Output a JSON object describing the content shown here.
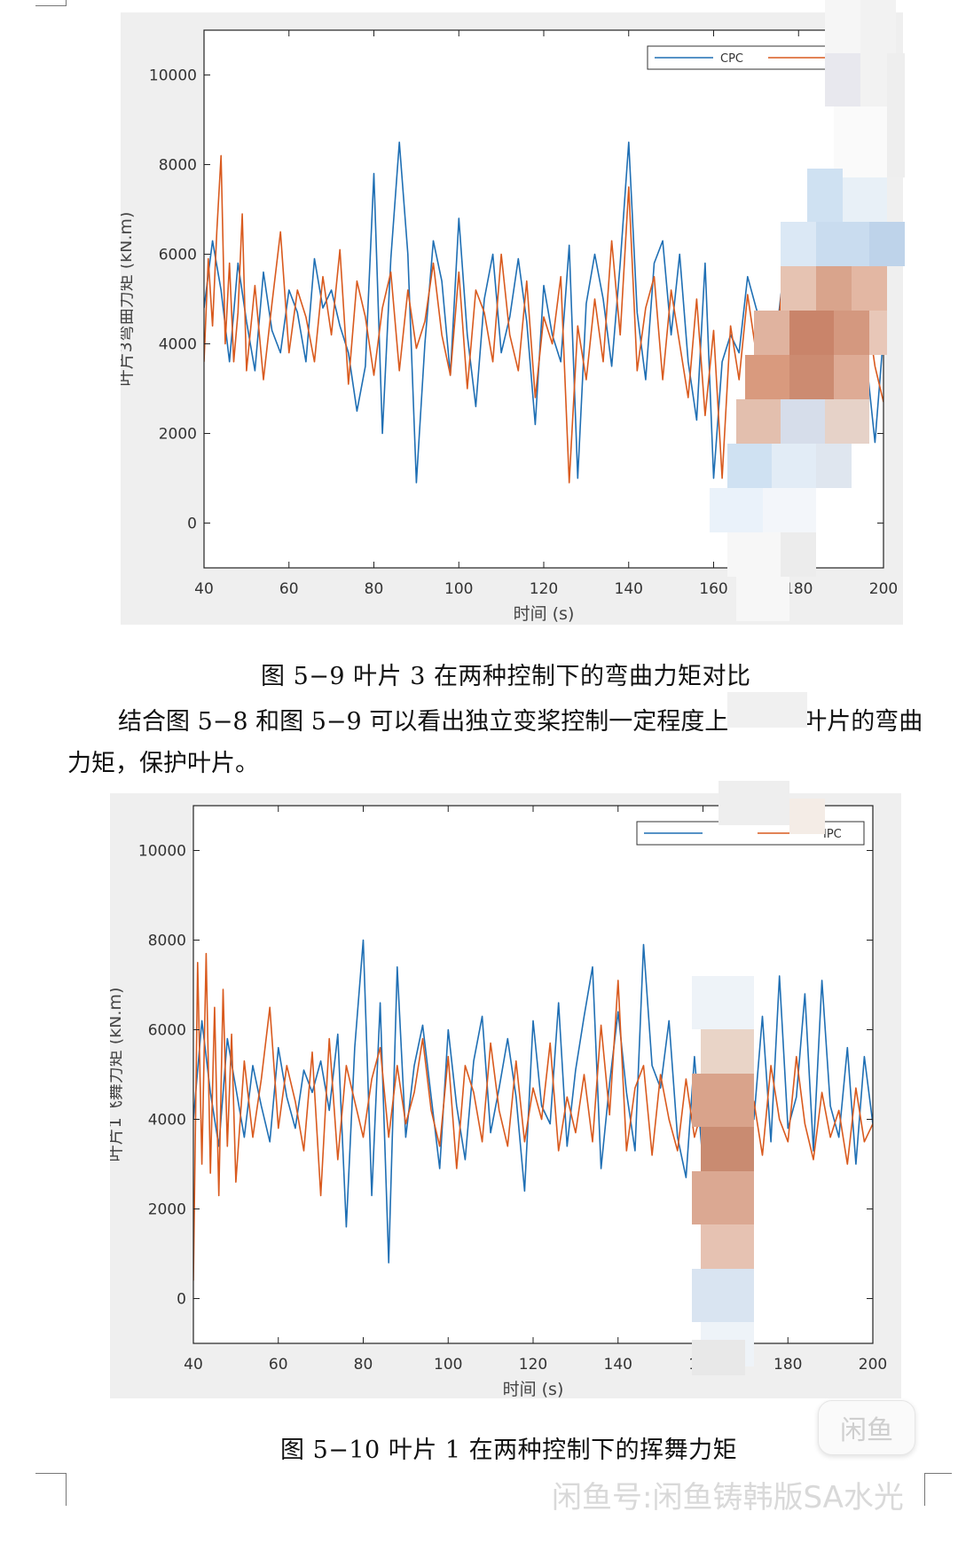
{
  "figures": [
    {
      "caption": "图 5−9 叶片 3 在两种控制下的弯曲力矩对比",
      "chart_data": {
        "type": "line",
        "title": "",
        "xlabel": "时间 (s)",
        "ylabel": "叶片3弯曲力矩 (kN.m)",
        "xlim": [
          40,
          200
        ],
        "ylim": [
          -1000,
          11000
        ],
        "xticks": [
          40,
          60,
          80,
          100,
          120,
          140,
          160,
          180,
          200
        ],
        "yticks": [
          0,
          2000,
          4000,
          6000,
          8000,
          10000
        ],
        "legend_placement": "top-right",
        "grid": false,
        "series": [
          {
            "name": "CPC",
            "color": "#1f6fb4",
            "x": [
              40,
              42,
              44,
              46,
              48,
              50,
              52,
              54,
              56,
              58,
              60,
              62,
              64,
              66,
              68,
              70,
              72,
              74,
              76,
              78,
              80,
              82,
              84,
              86,
              88,
              90,
              92,
              94,
              96,
              98,
              100,
              102,
              104,
              106,
              108,
              110,
              112,
              114,
              116,
              118,
              120,
              122,
              124,
              126,
              128,
              130,
              132,
              134,
              136,
              138,
              140,
              142,
              144,
              146,
              148,
              150,
              152,
              154,
              156,
              158,
              160,
              162,
              164,
              166,
              168,
              170,
              172,
              174,
              176,
              178,
              180,
              182,
              184,
              186,
              188,
              190,
              192,
              194,
              196,
              198,
              200
            ],
            "y": [
              4800,
              6300,
              5200,
              3600,
              5800,
              4500,
              3400,
              5600,
              4300,
              3800,
              5200,
              4700,
              3600,
              5900,
              4800,
              5200,
              4400,
              3800,
              2500,
              3500,
              7800,
              2000,
              5900,
              8500,
              6000,
              900,
              4000,
              6300,
              5400,
              3300,
              6800,
              4200,
              2600,
              5000,
              6000,
              3800,
              4600,
              5900,
              4500,
              2200,
              5300,
              4200,
              3600,
              6200,
              1000,
              4900,
              6000,
              5000,
              3500,
              5800,
              8500,
              4700,
              3200,
              5800,
              6300,
              4200,
              6000,
              3600,
              2300,
              5800,
              1000,
              3600,
              4200,
              3800,
              5500,
              4800,
              4200,
              3600,
              5200,
              4000,
              6300,
              5200,
              3000,
              4600,
              3800,
              4500,
              2800,
              4200,
              3600,
              1800,
              4200
            ]
          },
          {
            "name": "",
            "color": "#d95a1e",
            "x": [
              40,
              41,
              42,
              43,
              44,
              45,
              46,
              47,
              48,
              49,
              50,
              52,
              54,
              56,
              58,
              60,
              62,
              64,
              66,
              68,
              70,
              72,
              74,
              76,
              78,
              80,
              82,
              84,
              86,
              88,
              90,
              92,
              94,
              96,
              98,
              100,
              102,
              104,
              106,
              108,
              110,
              112,
              114,
              116,
              118,
              120,
              122,
              124,
              126,
              128,
              130,
              132,
              134,
              136,
              138,
              140,
              142,
              144,
              146,
              148,
              150,
              152,
              154,
              156,
              158,
              160,
              162,
              164,
              166,
              168,
              170,
              172,
              174,
              176,
              178,
              180,
              182,
              184,
              186,
              188,
              190,
              192,
              194,
              196,
              198,
              200
            ],
            "y": [
              3600,
              5900,
              4400,
              6500,
              8200,
              4000,
              5800,
              3600,
              4700,
              6900,
              3400,
              5300,
              3200,
              4900,
              6500,
              3800,
              5200,
              4600,
              3600,
              5500,
              4200,
              6100,
              3100,
              5400,
              4600,
              3300,
              4800,
              5600,
              3400,
              5200,
              3900,
              4500,
              5800,
              4200,
              3300,
              5600,
              3000,
              5200,
              4700,
              3600,
              6000,
              4200,
              3400,
              5400,
              2800,
              4600,
              4000,
              5500,
              900,
              4400,
              3200,
              5000,
              3600,
              6300,
              4200,
              7500,
              3400,
              4800,
              5500,
              3200,
              5200,
              4000,
              2800,
              5000,
              2400,
              4300,
              1000,
              4400,
              3200,
              5100,
              3800,
              4500,
              3000,
              5200,
              4100,
              3400,
              5600,
              4000,
              3100,
              4700,
              3600,
              4300,
              3000,
              4800,
              3500,
              2700
            ]
          }
        ]
      }
    },
    {
      "caption": "图 5−10 叶片 1 在两种控制下的挥舞力矩",
      "chart_data": {
        "type": "line",
        "title": "",
        "xlabel": "时间 (s)",
        "ylabel": "叶片1飞舞力矩 (kN.m)",
        "xlim": [
          40,
          200
        ],
        "ylim": [
          -1000,
          11000
        ],
        "xticks": [
          40,
          60,
          80,
          100,
          120,
          140,
          160,
          180,
          200
        ],
        "yticks": [
          0,
          2000,
          4000,
          6000,
          8000,
          10000
        ],
        "legend_placement": "top-right",
        "grid": false,
        "series": [
          {
            "name": "",
            "color": "#1f6fb4",
            "x": [
              40,
              42,
              44,
              46,
              48,
              50,
              52,
              54,
              56,
              58,
              60,
              62,
              64,
              66,
              68,
              70,
              72,
              74,
              76,
              78,
              80,
              82,
              84,
              86,
              88,
              90,
              92,
              94,
              96,
              98,
              100,
              102,
              104,
              106,
              108,
              110,
              112,
              114,
              116,
              118,
              120,
              122,
              124,
              126,
              128,
              130,
              132,
              134,
              136,
              138,
              140,
              142,
              144,
              146,
              148,
              150,
              152,
              154,
              156,
              158,
              160,
              162,
              164,
              166,
              168,
              170,
              172,
              174,
              176,
              178,
              180,
              182,
              184,
              186,
              188,
              190,
              192,
              194,
              196,
              198,
              200
            ],
            "y": [
              4000,
              6200,
              4600,
              3400,
              5800,
              4700,
              3600,
              5200,
              4300,
              3500,
              5600,
              4500,
              3800,
              5100,
              4600,
              5300,
              4200,
              5900,
              1600,
              5600,
              8000,
              2300,
              6600,
              800,
              7400,
              3600,
              5200,
              6100,
              4500,
              2900,
              6000,
              4300,
              3100,
              5300,
              6300,
              3700,
              4700,
              5800,
              4500,
              2400,
              6200,
              4300,
              3900,
              6600,
              3400,
              5100,
              6300,
              7400,
              2900,
              4800,
              6400,
              4600,
              3300,
              7900,
              5200,
              4700,
              6200,
              3600,
              2700,
              5400,
              3000,
              4400,
              6800,
              3800,
              5600,
              4700,
              4000,
              6300,
              3500,
              7200,
              3800,
              4500,
              6800,
              3300,
              7100,
              4300,
              3600,
              5600,
              3000,
              5400,
              3900
            ]
          },
          {
            "name": "IPC",
            "color": "#d95a1e",
            "x": [
              40,
              41,
              42,
              43,
              44,
              45,
              46,
              47,
              48,
              49,
              50,
              52,
              54,
              56,
              58,
              60,
              62,
              64,
              66,
              68,
              70,
              72,
              74,
              76,
              78,
              80,
              82,
              84,
              86,
              88,
              90,
              92,
              94,
              96,
              98,
              100,
              102,
              104,
              106,
              108,
              110,
              112,
              114,
              116,
              118,
              120,
              122,
              124,
              126,
              128,
              130,
              132,
              134,
              136,
              138,
              140,
              142,
              144,
              146,
              148,
              150,
              152,
              154,
              156,
              158,
              160,
              162,
              164,
              166,
              168,
              170,
              172,
              174,
              176,
              178,
              180,
              182,
              184,
              186,
              188,
              190,
              192,
              194,
              196,
              198,
              200
            ],
            "y": [
              400,
              7500,
              3000,
              7700,
              2800,
              6500,
              2300,
              6900,
              3400,
              5900,
              2600,
              5300,
              3600,
              4900,
              6500,
              3800,
              5200,
              4400,
              3300,
              5500,
              2300,
              5800,
              3100,
              5200,
              4400,
              3600,
              4900,
              5600,
              3600,
              5200,
              3900,
              4600,
              5800,
              4200,
              3400,
              5400,
              2900,
              5200,
              4600,
              3500,
              5700,
              4200,
              3400,
              5300,
              3500,
              4700,
              4000,
              5700,
              3300,
              4500,
              3700,
              5000,
              3500,
              6100,
              4100,
              7100,
              3300,
              4700,
              5200,
              3200,
              5000,
              4000,
              3300,
              4900,
              3600,
              4300,
              2900,
              4500,
              3500,
              5000,
              3800,
              4400,
              3200,
              5200,
              4000,
              3500,
              5400,
              3900,
              3100,
              4600,
              3600,
              4200,
              3000,
              4700,
              3500,
              3900
            ]
          }
        ]
      }
    }
  ],
  "paragraph": {
    "line1": "结合图 5−8 和图 5−9 可以看出独立变桨控制一定程度上",
    "line1b": "叶片的弯曲",
    "line2": "力矩，保护叶片。"
  },
  "watermark": "闲鱼号:闲鱼铸韩版SA水光",
  "badge": "闲鱼"
}
